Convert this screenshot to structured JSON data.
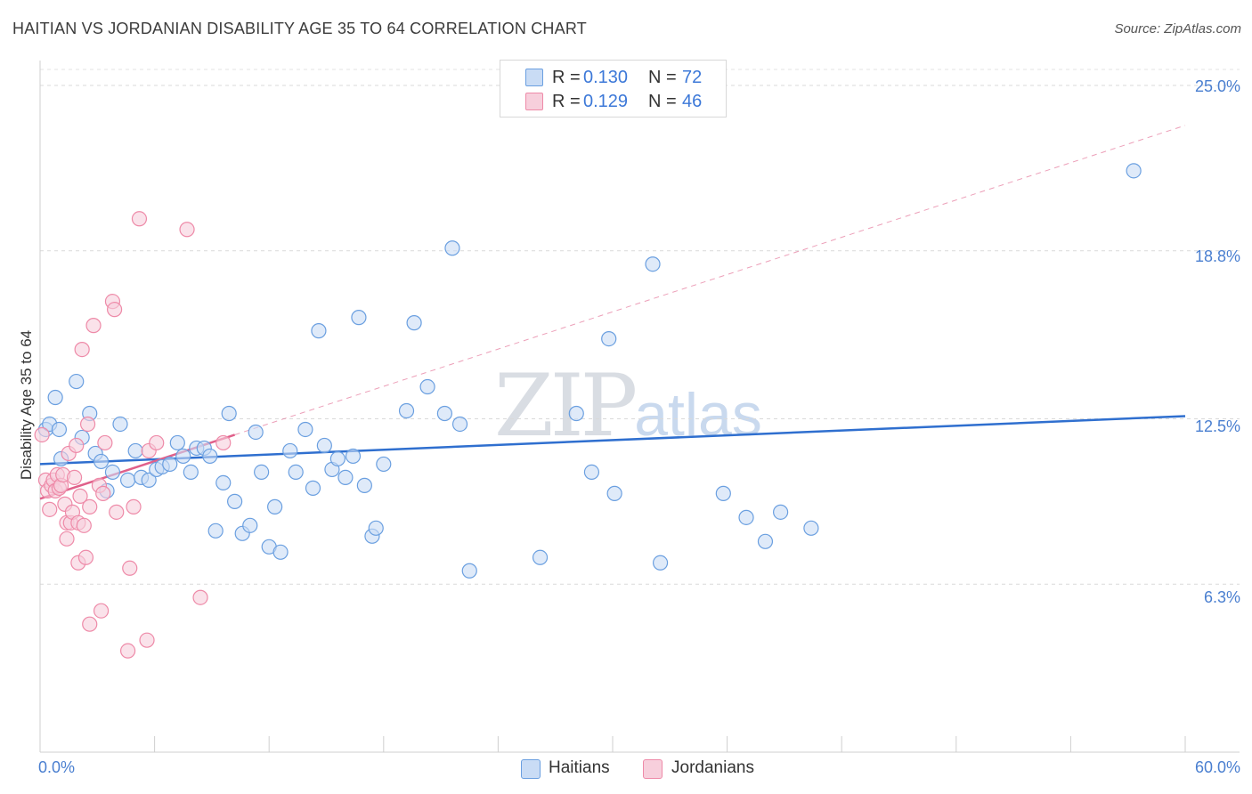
{
  "title": "HAITIAN VS JORDANIAN DISABILITY AGE 35 TO 64 CORRELATION CHART",
  "source": "Source: ZipAtlas.com",
  "watermark": {
    "zip": "ZIP",
    "atlas": "atlas"
  },
  "colors": {
    "haitian": "#6a9fe0",
    "haitian_fill": "#c9dcf5",
    "jordanian": "#ee8aa8",
    "jordanian_fill": "#f7cfdc",
    "haitian_line": "#2f6fcf",
    "jordanian_line": "#e0608a",
    "tick_text": "#4a7fd0"
  },
  "legend": {
    "haitian": {
      "r_label": "R =",
      "r_value": "0.130",
      "n_label": "N =",
      "n_value": "72"
    },
    "jordanian": {
      "r_label": "R =",
      "r_value": "0.129",
      "n_label": "N =",
      "n_value": "46"
    }
  },
  "bottom_legend": {
    "haitian": "Haitians",
    "jordanian": "Jordanians"
  },
  "chart_data": {
    "type": "scatter",
    "title": "HAITIAN VS JORDANIAN DISABILITY AGE 35 TO 64 CORRELATION CHART",
    "xlabel": "",
    "ylabel": "Disability Age 35 to 64",
    "xlim": [
      0,
      60
    ],
    "ylim": [
      0,
      25.6
    ],
    "x_tick_labels": [
      "0.0%",
      "60.0%"
    ],
    "y_ticks": [
      6.3,
      12.5,
      18.8,
      25.0
    ],
    "y_tick_labels": [
      "6.3%",
      "12.5%",
      "18.8%",
      "25.0%"
    ],
    "grid": true,
    "series": [
      {
        "name": "Haitians",
        "points": [
          [
            0.3,
            12.1
          ],
          [
            0.5,
            12.3
          ],
          [
            0.8,
            13.3
          ],
          [
            1.0,
            12.1
          ],
          [
            1.1,
            11.0
          ],
          [
            1.9,
            13.9
          ],
          [
            2.2,
            11.8
          ],
          [
            2.6,
            12.7
          ],
          [
            2.9,
            11.2
          ],
          [
            3.2,
            10.9
          ],
          [
            3.5,
            9.8
          ],
          [
            3.8,
            10.5
          ],
          [
            4.2,
            12.3
          ],
          [
            4.6,
            10.2
          ],
          [
            5.0,
            11.3
          ],
          [
            5.3,
            10.3
          ],
          [
            5.7,
            10.2
          ],
          [
            6.1,
            10.6
          ],
          [
            6.4,
            10.7
          ],
          [
            6.8,
            10.8
          ],
          [
            7.2,
            11.6
          ],
          [
            7.5,
            11.1
          ],
          [
            7.9,
            10.5
          ],
          [
            8.2,
            11.4
          ],
          [
            8.6,
            11.4
          ],
          [
            8.9,
            11.1
          ],
          [
            9.2,
            8.3
          ],
          [
            9.6,
            10.1
          ],
          [
            9.9,
            12.7
          ],
          [
            10.2,
            9.4
          ],
          [
            10.6,
            8.2
          ],
          [
            11.0,
            8.5
          ],
          [
            11.3,
            12.0
          ],
          [
            11.6,
            10.5
          ],
          [
            12.0,
            7.7
          ],
          [
            12.3,
            9.2
          ],
          [
            12.6,
            7.5
          ],
          [
            13.1,
            11.3
          ],
          [
            13.4,
            10.5
          ],
          [
            13.9,
            12.1
          ],
          [
            14.3,
            9.9
          ],
          [
            14.6,
            15.8
          ],
          [
            14.9,
            11.5
          ],
          [
            15.3,
            10.6
          ],
          [
            15.6,
            11.0
          ],
          [
            16.0,
            10.3
          ],
          [
            16.4,
            11.1
          ],
          [
            16.7,
            16.3
          ],
          [
            17.0,
            10.0
          ],
          [
            17.4,
            8.1
          ],
          [
            17.6,
            8.4
          ],
          [
            18.0,
            10.8
          ],
          [
            19.2,
            12.8
          ],
          [
            19.6,
            16.1
          ],
          [
            20.3,
            13.7
          ],
          [
            21.2,
            12.7
          ],
          [
            21.6,
            18.9
          ],
          [
            22.0,
            12.3
          ],
          [
            22.5,
            6.8
          ],
          [
            26.2,
            7.3
          ],
          [
            28.1,
            12.7
          ],
          [
            28.9,
            10.5
          ],
          [
            29.8,
            15.5
          ],
          [
            30.1,
            9.7
          ],
          [
            32.1,
            18.3
          ],
          [
            32.5,
            7.1
          ],
          [
            35.8,
            9.7
          ],
          [
            37.0,
            8.8
          ],
          [
            38.0,
            7.9
          ],
          [
            38.8,
            9.0
          ],
          [
            40.4,
            8.4
          ],
          [
            57.3,
            21.8
          ]
        ]
      },
      {
        "name": "Jordanians",
        "points": [
          [
            0.1,
            11.9
          ],
          [
            0.3,
            10.2
          ],
          [
            0.4,
            9.8
          ],
          [
            0.5,
            9.1
          ],
          [
            0.6,
            10.0
          ],
          [
            0.7,
            10.2
          ],
          [
            0.8,
            9.8
          ],
          [
            0.9,
            10.4
          ],
          [
            1.0,
            9.9
          ],
          [
            1.1,
            10.0
          ],
          [
            1.2,
            10.4
          ],
          [
            1.3,
            9.3
          ],
          [
            1.4,
            8.6
          ],
          [
            1.4,
            8.0
          ],
          [
            1.5,
            11.2
          ],
          [
            1.6,
            8.6
          ],
          [
            1.7,
            9.0
          ],
          [
            1.8,
            10.3
          ],
          [
            1.9,
            11.5
          ],
          [
            2.0,
            8.6
          ],
          [
            2.0,
            7.1
          ],
          [
            2.1,
            9.6
          ],
          [
            2.2,
            15.1
          ],
          [
            2.3,
            8.5
          ],
          [
            2.4,
            7.3
          ],
          [
            2.5,
            12.3
          ],
          [
            2.6,
            9.2
          ],
          [
            2.6,
            4.8
          ],
          [
            2.8,
            16.0
          ],
          [
            3.1,
            10.0
          ],
          [
            3.2,
            5.3
          ],
          [
            3.3,
            9.7
          ],
          [
            3.4,
            11.6
          ],
          [
            3.8,
            16.9
          ],
          [
            3.9,
            16.6
          ],
          [
            4.0,
            9.0
          ],
          [
            4.6,
            3.8
          ],
          [
            4.7,
            6.9
          ],
          [
            4.9,
            9.2
          ],
          [
            5.2,
            20.0
          ],
          [
            5.6,
            4.2
          ],
          [
            5.7,
            11.3
          ],
          [
            6.1,
            11.6
          ],
          [
            7.7,
            19.6
          ],
          [
            8.4,
            5.8
          ],
          [
            9.6,
            11.6
          ]
        ]
      }
    ],
    "trendlines": [
      {
        "series": "Haitians",
        "style": "solid",
        "x": [
          0,
          60
        ],
        "y": [
          10.8,
          12.6
        ]
      },
      {
        "series": "Jordanians",
        "style": "solid",
        "x": [
          0,
          10.2
        ],
        "y": [
          9.5,
          11.9
        ]
      },
      {
        "series": "Jordanians",
        "style": "dashed",
        "x": [
          10.2,
          60
        ],
        "y": [
          11.9,
          23.5
        ]
      }
    ]
  }
}
